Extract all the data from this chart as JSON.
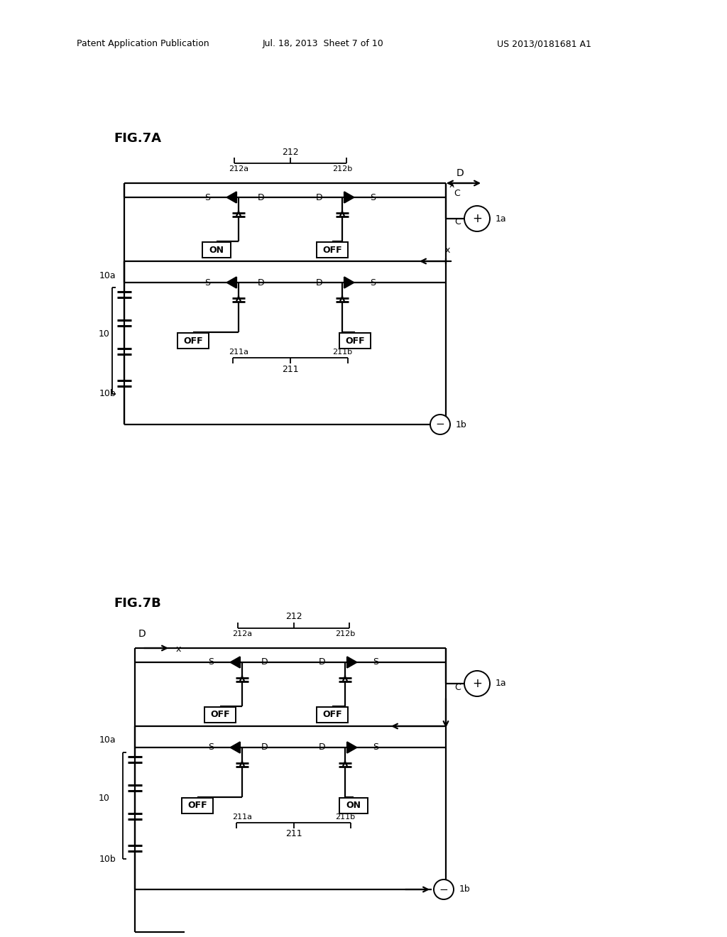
{
  "bg_color": "#ffffff",
  "line_color": "#000000",
  "header_left": "Patent Application Publication",
  "header_mid": "Jul. 18, 2013  Sheet 7 of 10",
  "header_right": "US 2013/0181681 A1"
}
